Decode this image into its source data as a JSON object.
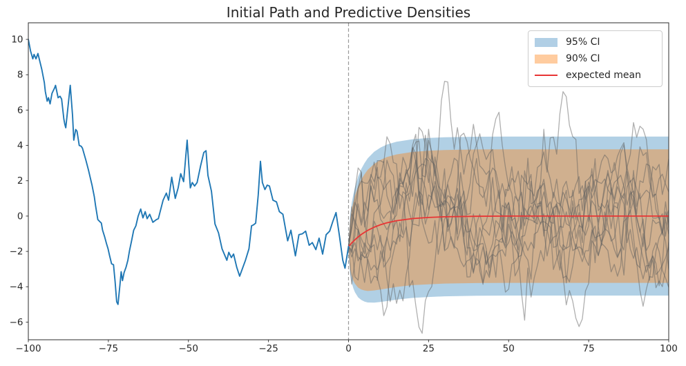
{
  "title": "Initial Path and Predictive Densities",
  "legend": {
    "items": [
      {
        "label": "95% CI",
        "swatch": "patch-blue"
      },
      {
        "label": "90% CI",
        "swatch": "patch-orange"
      },
      {
        "label": "expected mean",
        "swatch": "red-line"
      }
    ]
  },
  "colors": {
    "initial_path": "#1f77b4",
    "ci95_fill": "rgba(31,119,180,0.35)",
    "ci90_fill": "rgba(255,127,14,0.40)",
    "mean_line": "#e83434",
    "sample_path": "rgba(95,95,95,0.50)",
    "dashed_vline": "#9a9a9a",
    "spine": "#2b2b2b",
    "tick_label": "#262626",
    "legend_ci95_swatch": "#b1cfe5",
    "legend_ci90_swatch": "#ffcc9f"
  },
  "chart_data": {
    "type": "line",
    "title": "Initial Path and Predictive Densities",
    "xlabel": "",
    "ylabel": "",
    "xlim": [
      -100,
      100
    ],
    "ylim": [
      -7.0,
      10.94
    ],
    "x_ticks": [
      -100,
      -75,
      -50,
      -25,
      0,
      25,
      50,
      75,
      100
    ],
    "y_ticks": [
      10,
      8,
      6,
      4,
      2,
      0,
      -2,
      -4,
      -6
    ],
    "grid": false,
    "legend_position": "upper right",
    "vline": {
      "x": 0,
      "style": "dashed"
    },
    "initial_path": {
      "name": "initial path",
      "x": [
        -100,
        -99.3,
        -98.6,
        -98.2,
        -97.6,
        -97,
        -96.4,
        -95.8,
        -95,
        -94.7,
        -94.1,
        -93.7,
        -93.2,
        -92.6,
        -91.8,
        -91.5,
        -90.7,
        -90.1,
        -89.6,
        -88.9,
        -88.6,
        -88.3,
        -87.9,
        -86.9,
        -86.2,
        -85.8,
        -85.2,
        -84.8,
        -84.1,
        -83.5,
        -83.1,
        -82,
        -81.2,
        -80.5,
        -80.1,
        -79.4,
        -79,
        -78.3,
        -77.9,
        -77.2,
        -76.8,
        -76.2,
        -75.6,
        -75.1,
        -74.6,
        -74,
        -73.4,
        -72.9,
        -72.4,
        -72,
        -71.4,
        -71,
        -70.6,
        -70.1,
        -69.5,
        -68.9,
        -68.4,
        -67.8,
        -67.1,
        -66.4,
        -65.7,
        -64.9,
        -64.2,
        -63.5,
        -62.9,
        -62.1,
        -61.1,
        -60,
        -59.4,
        -57.9,
        -56.9,
        -56.2,
        -55.2,
        -54.1,
        -53.2,
        -52.4,
        -51.5,
        -50.4,
        -49.4,
        -48.8,
        -48.1,
        -47.3,
        -46.2,
        -45.2,
        -44.5,
        -43.9,
        -43.4,
        -42.8,
        -41.7,
        -40.6,
        -39.5,
        -38,
        -37.4,
        -36.6,
        -35.9,
        -34.9,
        -34,
        -32.2,
        -31.1,
        -30.3,
        -29.7,
        -29,
        -28.2,
        -27.5,
        -26.9,
        -26.1,
        -25.4,
        -24.7,
        -23.6,
        -22.5,
        -21.6,
        -20.5,
        -19,
        -18,
        -16.6,
        -15.5,
        -14.4,
        -13.4,
        -12.3,
        -11.3,
        -10.2,
        -9.2,
        -8.1,
        -7,
        -5.9,
        -4.9,
        -3.9,
        -2.9,
        -1.8,
        -1.1,
        0
      ],
      "y": [
        10,
        9.35,
        8.9,
        9.15,
        8.9,
        9.2,
        8.75,
        8.3,
        7.55,
        7.05,
        6.5,
        6.7,
        6.35,
        6.95,
        7.25,
        7.4,
        6.7,
        6.78,
        6.62,
        5.5,
        5.2,
        5.0,
        5.7,
        7.4,
        5.7,
        4.3,
        4.9,
        4.8,
        4.0,
        3.95,
        3.85,
        3.15,
        2.6,
        2.05,
        1.75,
        1.1,
        0.6,
        -0.2,
        -0.27,
        -0.4,
        -0.8,
        -1.15,
        -1.55,
        -1.85,
        -2.25,
        -2.7,
        -2.75,
        -3.7,
        -4.85,
        -5.0,
        -3.9,
        -3.15,
        -3.65,
        -3.2,
        -2.9,
        -2.5,
        -1.95,
        -1.45,
        -0.8,
        -0.55,
        0.0,
        0.4,
        -0.1,
        0.25,
        -0.15,
        0.1,
        -0.35,
        -0.2,
        -0.15,
        0.9,
        1.3,
        0.9,
        2.2,
        1.0,
        1.6,
        2.4,
        1.95,
        4.3,
        1.6,
        1.9,
        1.7,
        1.9,
        2.85,
        3.6,
        3.7,
        2.3,
        1.9,
        1.4,
        -0.45,
        -0.95,
        -1.85,
        -2.5,
        -2.05,
        -2.35,
        -2.15,
        -2.9,
        -3.4,
        -2.5,
        -1.85,
        -0.55,
        -0.5,
        -0.4,
        1.2,
        3.1,
        1.9,
        1.5,
        1.75,
        1.7,
        0.9,
        0.8,
        0.25,
        0.1,
        -1.4,
        -0.8,
        -2.25,
        -1.05,
        -1.0,
        -0.85,
        -1.65,
        -1.5,
        -1.9,
        -1.25,
        -2.15,
        -1.05,
        -0.85,
        -0.3,
        0.2,
        -1.05,
        -2.5,
        -2.95,
        -1.72
      ]
    },
    "forecast": {
      "t": [
        0,
        0.5,
        1,
        1.5,
        2,
        3,
        4,
        5,
        6,
        8,
        10,
        12,
        15,
        20,
        25,
        30,
        40,
        50,
        60,
        70,
        80,
        90,
        100
      ],
      "mean": [
        -1.72,
        -1.62,
        -1.52,
        -1.43,
        -1.34,
        -1.18,
        -1.04,
        -0.92,
        -0.81,
        -0.63,
        -0.49,
        -0.38,
        -0.26,
        -0.14,
        -0.08,
        -0.04,
        -0.01,
        0,
        0,
        0,
        0,
        0,
        0
      ],
      "upper95": [
        -1.72,
        0.02,
        0.73,
        1.23,
        1.63,
        2.24,
        2.67,
        3.0,
        3.27,
        3.64,
        3.88,
        4.05,
        4.21,
        4.35,
        4.42,
        4.46,
        4.49,
        4.5,
        4.5,
        4.5,
        4.5,
        4.5,
        4.5
      ],
      "lower95": [
        -1.72,
        -3.26,
        -3.77,
        -4.09,
        -4.31,
        -4.6,
        -4.75,
        -4.84,
        -4.89,
        -4.9,
        -4.86,
        -4.81,
        -4.73,
        -4.63,
        -4.58,
        -4.54,
        -4.51,
        -4.5,
        -4.5,
        -4.5,
        -4.5,
        -4.5,
        -4.5
      ],
      "upper90": [
        -1.72,
        -0.24,
        0.37,
        0.8,
        1.15,
        1.69,
        2.08,
        2.37,
        2.62,
        2.95,
        3.18,
        3.34,
        3.49,
        3.63,
        3.7,
        3.74,
        3.77,
        3.78,
        3.78,
        3.78,
        3.78,
        3.78,
        3.78
      ],
      "lower90": [
        -1.72,
        -3.0,
        -3.41,
        -3.66,
        -3.83,
        -4.05,
        -4.16,
        -4.21,
        -4.24,
        -4.21,
        -4.16,
        -4.1,
        -4.01,
        -3.91,
        -3.86,
        -3.82,
        -3.79,
        -3.78,
        -3.78,
        -3.78,
        -3.78,
        -3.78,
        -3.78
      ]
    },
    "sample_paths": {
      "description": "simulated mean-reverting sample paths drawn in gray from t=0 to t=100",
      "count": 11,
      "start": -1.72,
      "mean_level": 0,
      "theta": 0.12,
      "sigma": 1.08,
      "dt": 1,
      "t_start": 0,
      "t_end": 100,
      "seed": 20240613,
      "approx_range": [
        -6.1,
        6.0
      ]
    }
  }
}
